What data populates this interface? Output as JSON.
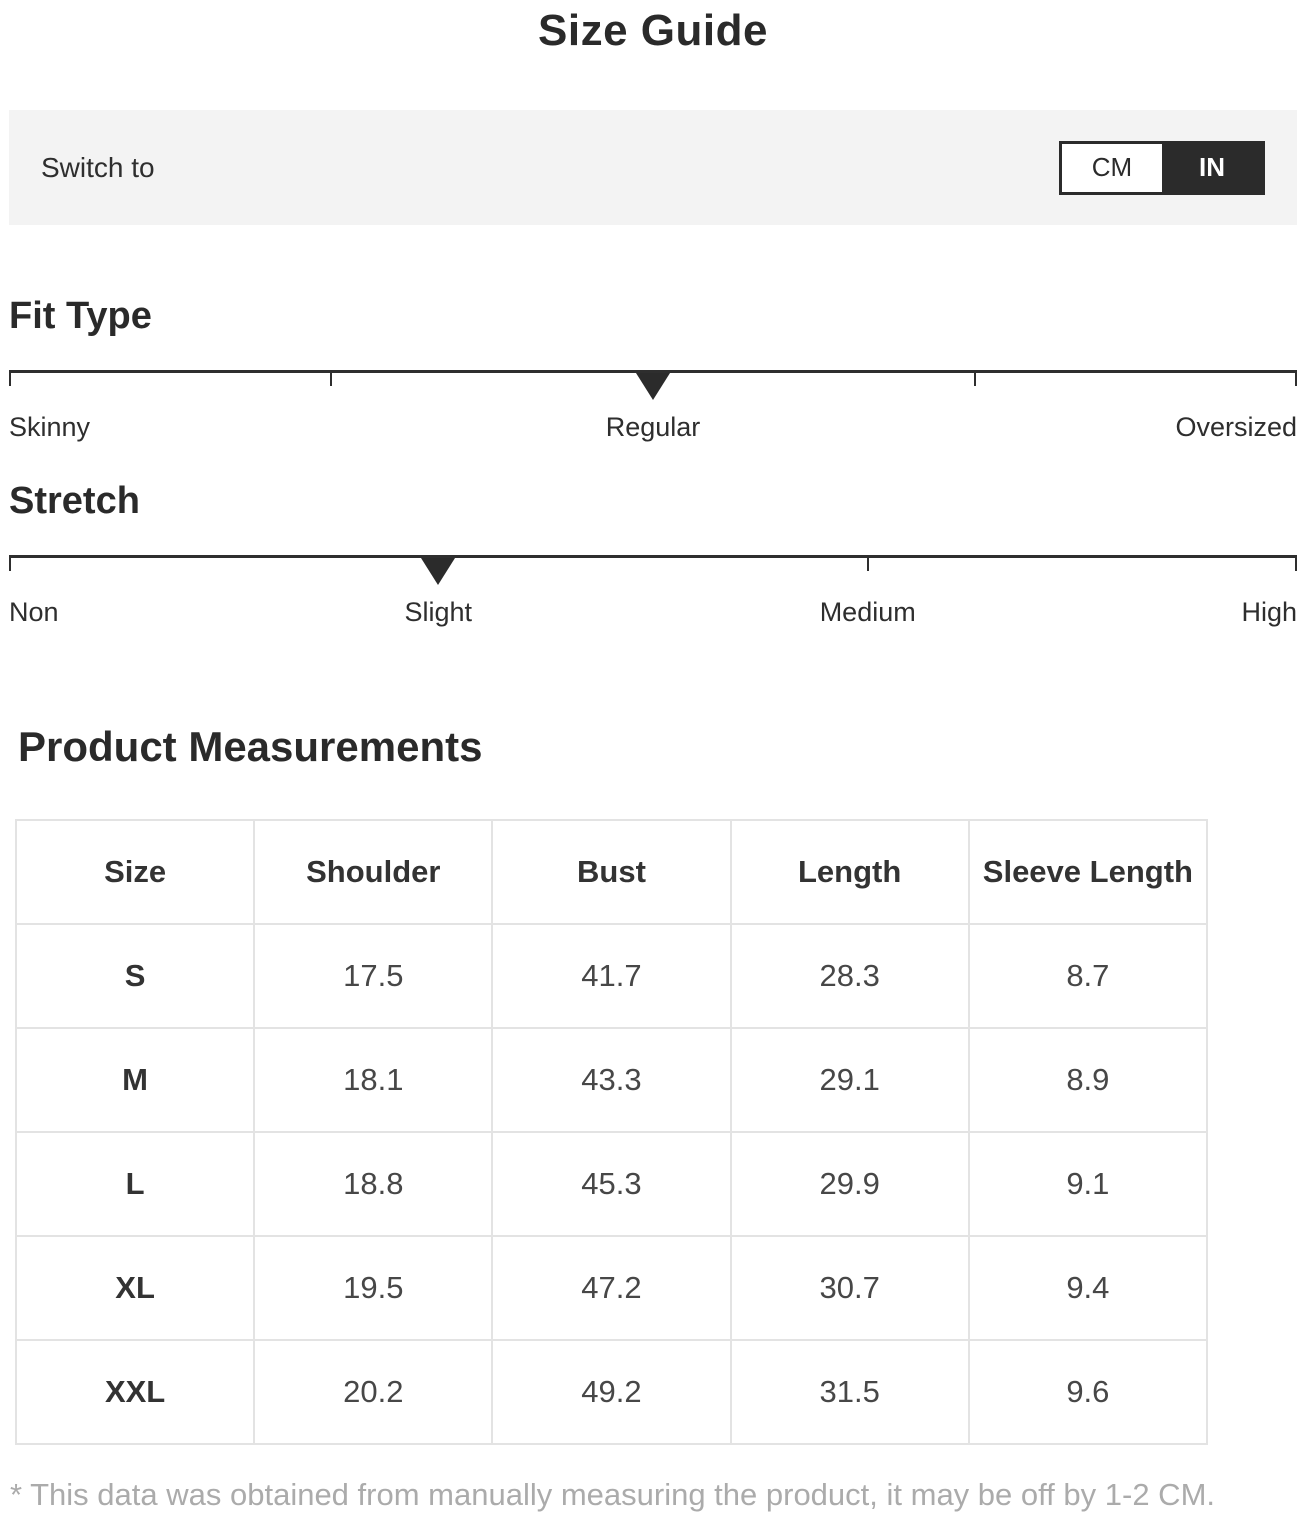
{
  "page": {
    "title": "Size Guide"
  },
  "unit_switch": {
    "label": "Switch to",
    "options": [
      {
        "label": "CM",
        "selected": false
      },
      {
        "label": "IN",
        "selected": true
      }
    ]
  },
  "fit_type": {
    "heading": "Fit Type",
    "tick_positions_pct": [
      0,
      25,
      50,
      75,
      100
    ],
    "marker_position_pct": 50,
    "selected": "Regular",
    "labels": [
      {
        "text": "Skinny",
        "pct": 0
      },
      {
        "text": "Regular",
        "pct": 50
      },
      {
        "text": "Oversized",
        "pct": 100
      }
    ]
  },
  "stretch": {
    "heading": "Stretch",
    "tick_positions_pct": [
      0,
      33.33,
      66.67,
      100
    ],
    "marker_position_pct": 33.33,
    "selected": "Slight",
    "labels": [
      {
        "text": "Non",
        "pct": 0
      },
      {
        "text": "Slight",
        "pct": 33.33
      },
      {
        "text": "Medium",
        "pct": 66.67
      },
      {
        "text": "High",
        "pct": 100
      }
    ]
  },
  "measurements": {
    "heading": "Product Measurements",
    "unit": "IN",
    "columns": [
      "Size",
      "Shoulder",
      "Bust",
      "Length",
      "Sleeve Length"
    ],
    "rows": [
      {
        "size": "S",
        "values": [
          "17.5",
          "41.7",
          "28.3",
          "8.7"
        ]
      },
      {
        "size": "M",
        "values": [
          "18.1",
          "43.3",
          "29.1",
          "8.9"
        ]
      },
      {
        "size": "L",
        "values": [
          "18.8",
          "45.3",
          "29.9",
          "9.1"
        ]
      },
      {
        "size": "XL",
        "values": [
          "19.5",
          "47.2",
          "30.7",
          "9.4"
        ]
      },
      {
        "size": "XXL",
        "values": [
          "20.2",
          "49.2",
          "31.5",
          "9.6"
        ]
      }
    ]
  },
  "footnote": "* This data was obtained from manually measuring the product, it may be off by 1-2 CM.",
  "colors": {
    "accent_dark": "#2b2b2b",
    "bar_background": "#f3f3f3",
    "table_border": "#e3e3e3",
    "text": "#2e2e2e",
    "muted_text": "#ababab"
  }
}
